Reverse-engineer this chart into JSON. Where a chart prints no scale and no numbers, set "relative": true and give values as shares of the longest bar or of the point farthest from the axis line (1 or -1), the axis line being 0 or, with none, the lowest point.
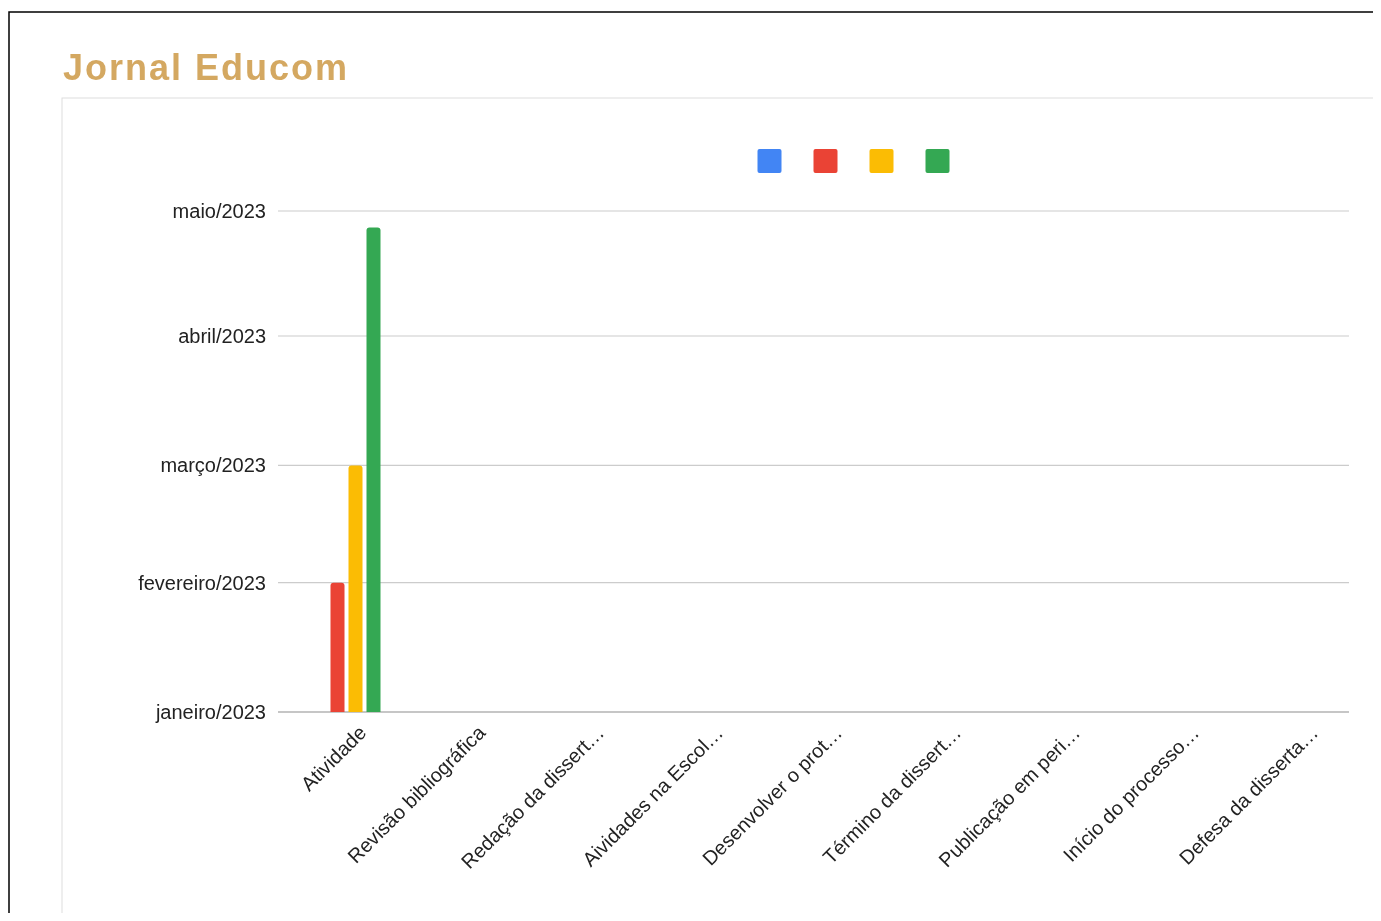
{
  "chart_data": {
    "type": "bar",
    "title": "Jornal Educom",
    "relative": true,
    "categories": [
      "Atividade",
      "Revisão bibliográfica",
      "Redação da dissert…",
      "Aividades na Escol…",
      "Desenvolver o prot…",
      "Término da dissert…",
      "Publicação em peri…",
      "Início do processo…",
      "Defesa da disserta…"
    ],
    "series": [
      {
        "color": "#4285f4",
        "values": [
          null,
          null,
          null,
          null,
          null,
          null,
          null,
          null,
          null
        ]
      },
      {
        "color": "#ea4335",
        "values": [
          0.267,
          null,
          null,
          null,
          null,
          null,
          null,
          null,
          null
        ]
      },
      {
        "color": "#fbbc04",
        "values": [
          0.509,
          null,
          null,
          null,
          null,
          null,
          null,
          null,
          null
        ]
      },
      {
        "color": "#34a853",
        "values": [
          1,
          null,
          null,
          null,
          null,
          null,
          null,
          null,
          null
        ]
      }
    ],
    "ref_lines": [
      {
        "axis": "y",
        "value": 0,
        "label": "janeiro/2023"
      },
      {
        "axis": "y",
        "value": 0.267,
        "label": "fevereiro/2023"
      },
      {
        "axis": "y",
        "value": 0.509,
        "label": "março/2023"
      },
      {
        "axis": "y",
        "value": 0.776,
        "label": "abril/2023"
      },
      {
        "axis": "y",
        "value": 1.034,
        "label": "maio/2023"
      }
    ],
    "legend": "top"
  }
}
